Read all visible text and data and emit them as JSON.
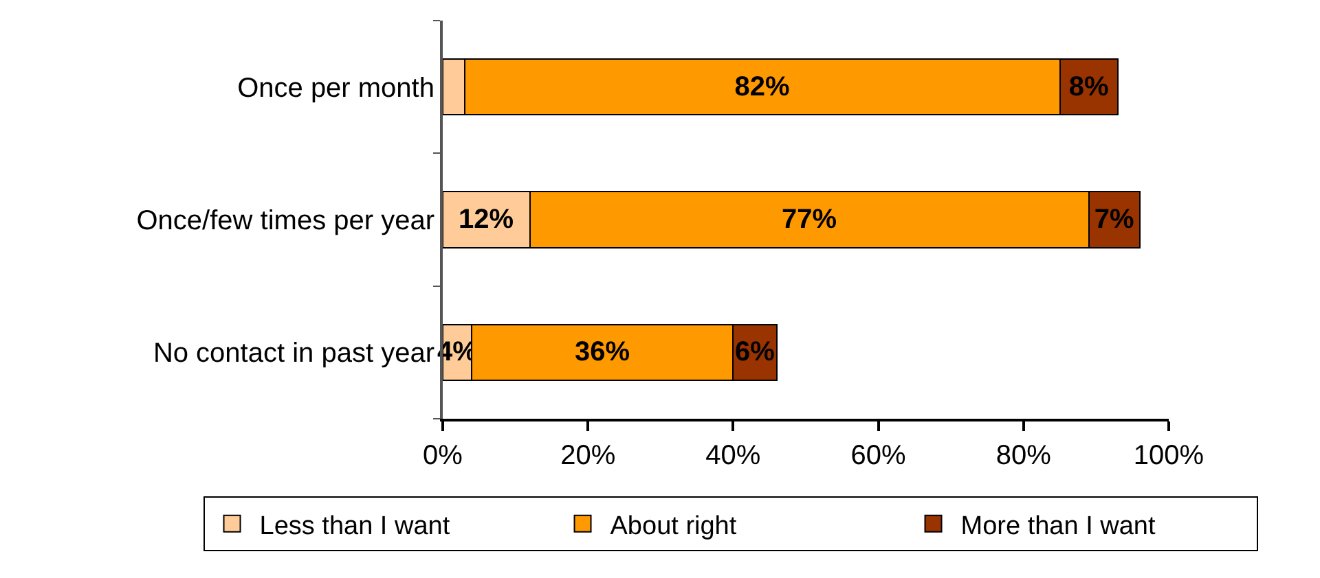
{
  "chart_data": {
    "type": "bar",
    "orientation": "horizontal",
    "stacked": true,
    "categories": [
      "Once per month",
      "Once/few times per year",
      "No contact in past year"
    ],
    "series": [
      {
        "name": "Less than I want",
        "color": "#ffcc99",
        "values": [
          3,
          12,
          4
        ],
        "value_labels": [
          null,
          "12%",
          "4%"
        ]
      },
      {
        "name": "About right",
        "color": "#ff9900",
        "values": [
          82,
          77,
          36
        ],
        "value_labels": [
          "82%",
          "77%",
          "36%"
        ]
      },
      {
        "name": "More than I want",
        "color": "#993300",
        "values": [
          8,
          7,
          6
        ],
        "value_labels": [
          "8%",
          "7%",
          "6%"
        ]
      }
    ],
    "xlim": [
      0,
      100
    ],
    "xticks": [
      {
        "value": 0,
        "label": "0%"
      },
      {
        "value": 20,
        "label": "20%"
      },
      {
        "value": 40,
        "label": "40%"
      },
      {
        "value": 60,
        "label": "60%"
      },
      {
        "value": 80,
        "label": "80%"
      },
      {
        "value": 100,
        "label": "100%"
      }
    ],
    "grid": false,
    "legend": "bottom"
  }
}
